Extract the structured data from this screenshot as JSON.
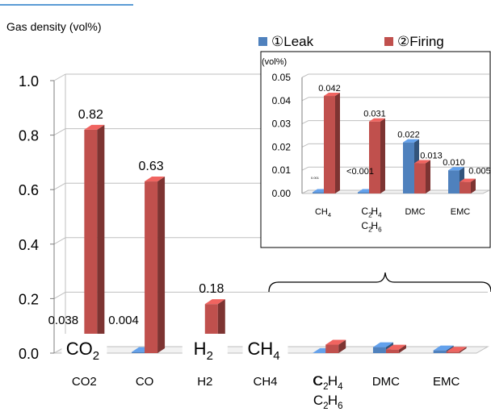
{
  "chart_data": [
    {
      "type": "bar",
      "title": "Gas density (vol%)",
      "categories": [
        "CO2",
        "CO",
        "H2",
        "CH4",
        "C2H4 C2H6",
        "DMC",
        "EMC"
      ],
      "category_labels": [
        {
          "main": "CO",
          "sub": "2"
        },
        {
          "main": "CO",
          "sub": ""
        },
        {
          "main": "H",
          "sub": "2"
        },
        {
          "main": "CH",
          "sub": "4"
        }
      ],
      "series": [
        {
          "name": "①Leak",
          "values": [
            0.038,
            0.004,
            0.0,
            0.0005,
            0.0005,
            0.022,
            0.01
          ]
        },
        {
          "name": "②Firing",
          "values": [
            0.82,
            0.63,
            0.18,
            0.042,
            0.031,
            0.013,
            0.005
          ]
        }
      ],
      "data_labels": [
        {
          "series": 0,
          "index": 0,
          "text": "0.038"
        },
        {
          "series": 1,
          "index": 0,
          "text": "0.82"
        },
        {
          "series": 0,
          "index": 1,
          "text": "0.004"
        },
        {
          "series": 1,
          "index": 1,
          "text": "0.63"
        },
        {
          "series": 1,
          "index": 2,
          "text": "0.18"
        }
      ],
      "yticks": [
        "0.0",
        "0.2",
        "0.4",
        "0.6",
        "0.8",
        "1.0"
      ],
      "ylim": [
        0,
        1.0
      ],
      "colors": {
        "leak": "#4f81bd",
        "firing": "#c0504d"
      },
      "legend_position": "top-right",
      "grid": true
    },
    {
      "type": "bar",
      "ylabel": "(vol%)",
      "categories": [
        "CH4",
        "C2H4 C2H6",
        "DMC",
        "EMC"
      ],
      "series": [
        {
          "name": "①Leak",
          "values": [
            0.0005,
            0.0005,
            0.022,
            0.01
          ]
        },
        {
          "name": "②Firing",
          "values": [
            0.042,
            0.031,
            0.013,
            0.005
          ]
        }
      ],
      "data_labels": [
        {
          "series": 0,
          "index": 0,
          "text": "0.001"
        },
        {
          "series": 1,
          "index": 0,
          "text": "0.042"
        },
        {
          "series": 0,
          "index": 1,
          "text": "<0.001"
        },
        {
          "series": 1,
          "index": 1,
          "text": "0.031"
        },
        {
          "series": 0,
          "index": 2,
          "text": "0.022"
        },
        {
          "series": 1,
          "index": 2,
          "text": "0.013"
        },
        {
          "series": 0,
          "index": 3,
          "text": "0.010"
        },
        {
          "series": 1,
          "index": 3,
          "text": "0.005"
        }
      ],
      "yticks": [
        "0.00",
        "0.01",
        "0.02",
        "0.03",
        "0.04",
        "0.05"
      ],
      "ylim": [
        0,
        0.05
      ],
      "grid": true
    }
  ],
  "legend": {
    "leak": "①Leak",
    "firing": "②Firing"
  }
}
